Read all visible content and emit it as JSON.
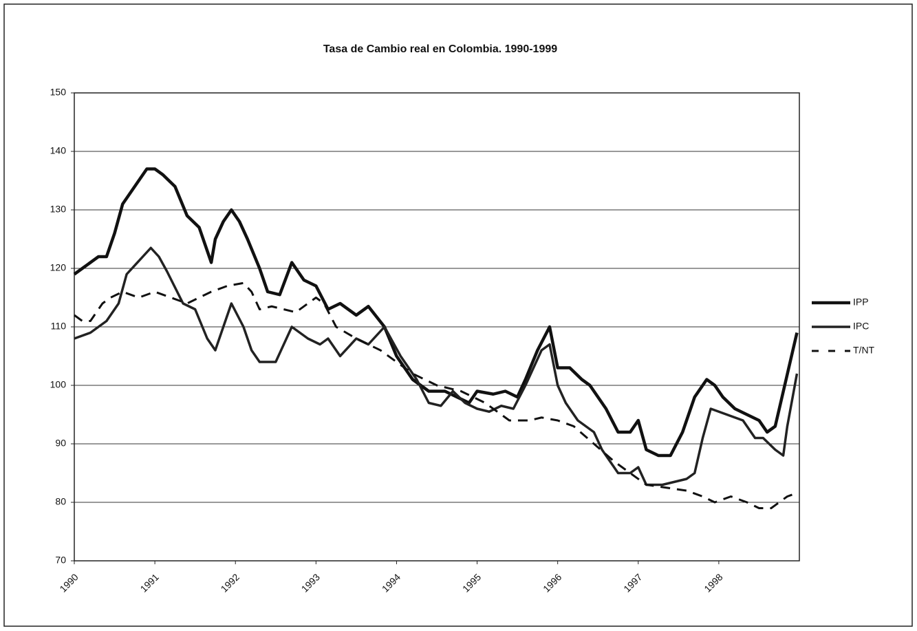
{
  "chart_data": {
    "type": "line",
    "title": "Tasa de Cambio real en Colombia. 1990-1999",
    "xlim": [
      1990,
      1999
    ],
    "xticks": [
      1990,
      1991,
      1992,
      1993,
      1994,
      1995,
      1996,
      1997,
      1998
    ],
    "ylim": [
      70,
      150
    ],
    "yticks": [
      70,
      80,
      90,
      100,
      110,
      120,
      130,
      140,
      150
    ],
    "grid": true,
    "legend": "right",
    "series": [
      {
        "name": "IPP",
        "color": "#111111",
        "style": "solid",
        "x": [
          1990.0,
          1990.1,
          1990.2,
          1990.3,
          1990.4,
          1990.5,
          1990.6,
          1990.75,
          1990.9,
          1991.0,
          1991.1,
          1991.25,
          1991.4,
          1991.55,
          1991.7,
          1991.75,
          1991.85,
          1991.95,
          1992.05,
          1992.15,
          1992.3,
          1992.4,
          1992.55,
          1992.7,
          1992.85,
          1993.0,
          1993.15,
          1993.3,
          1993.5,
          1993.65,
          1993.85,
          1994.0,
          1994.2,
          1994.4,
          1994.6,
          1994.75,
          1994.9,
          1995.0,
          1995.2,
          1995.35,
          1995.5,
          1995.6,
          1995.75,
          1995.9,
          1996.0,
          1996.15,
          1996.3,
          1996.4,
          1996.5,
          1996.6,
          1996.75,
          1996.9,
          1997.0,
          1997.1,
          1997.25,
          1997.4,
          1997.55,
          1997.7,
          1997.85,
          1997.95,
          1998.05,
          1998.2,
          1998.35,
          1998.5,
          1998.6,
          1998.7,
          1998.97
        ],
        "values": [
          119,
          120,
          121,
          122,
          122,
          126,
          131,
          134,
          137,
          137,
          136,
          134,
          129,
          127,
          121,
          125,
          128,
          130,
          128,
          125,
          120,
          116,
          115.5,
          121,
          118,
          117,
          113,
          114,
          112,
          113.5,
          110,
          105,
          101,
          99,
          99,
          98,
          97,
          99,
          98.5,
          99,
          98,
          101,
          106,
          110,
          103,
          103,
          101,
          100,
          98,
          96,
          92,
          92,
          94,
          89,
          88,
          88,
          92,
          98,
          101,
          100,
          98,
          96,
          95,
          94,
          92,
          93,
          109
        ]
      },
      {
        "name": "IPC",
        "color": "#222222",
        "style": "solid",
        "x": [
          1990.0,
          1990.2,
          1990.4,
          1990.55,
          1990.65,
          1990.85,
          1990.95,
          1991.05,
          1991.15,
          1991.35,
          1991.5,
          1991.65,
          1991.75,
          1991.85,
          1991.95,
          1992.1,
          1992.2,
          1992.3,
          1992.5,
          1992.7,
          1992.9,
          1993.05,
          1993.15,
          1993.3,
          1993.5,
          1993.65,
          1993.85,
          1994.05,
          1994.25,
          1994.4,
          1994.55,
          1994.7,
          1994.85,
          1995.0,
          1995.15,
          1995.3,
          1995.45,
          1995.6,
          1995.8,
          1995.9,
          1996.0,
          1996.1,
          1996.25,
          1996.35,
          1996.45,
          1996.55,
          1996.75,
          1996.9,
          1997.0,
          1997.1,
          1997.3,
          1997.45,
          1997.6,
          1997.7,
          1997.8,
          1997.9,
          1998.1,
          1998.3,
          1998.45,
          1998.55,
          1998.7,
          1998.8,
          1998.85,
          1998.97
        ],
        "values": [
          108,
          109,
          111,
          114,
          119,
          122,
          123.5,
          122,
          119.5,
          114,
          113,
          108,
          106,
          110,
          114,
          110,
          106,
          104,
          104,
          110,
          108,
          107,
          108,
          105,
          108,
          107,
          110,
          105,
          101,
          97,
          96.5,
          99,
          97,
          96,
          95.5,
          96.5,
          96,
          100,
          106,
          107,
          100,
          97,
          94,
          93,
          92,
          89,
          85,
          85,
          86,
          83,
          83,
          83.5,
          84,
          85,
          91,
          96,
          95,
          94,
          91,
          91,
          89,
          88,
          93,
          102
        ]
      },
      {
        "name": "T/NT",
        "color": "#111111",
        "style": "dashed",
        "x": [
          1990.0,
          1990.1,
          1990.2,
          1990.35,
          1990.45,
          1990.6,
          1990.8,
          1991.0,
          1991.2,
          1991.4,
          1991.55,
          1991.7,
          1991.9,
          1992.1,
          1992.2,
          1992.3,
          1992.45,
          1992.6,
          1992.75,
          1992.9,
          1993.0,
          1993.1,
          1993.25,
          1993.5,
          1993.8,
          1994.0,
          1994.2,
          1994.5,
          1994.8,
          1995.1,
          1995.4,
          1995.65,
          1995.8,
          1996.0,
          1996.2,
          1996.45,
          1996.7,
          1996.9,
          1997.1,
          1997.35,
          1997.6,
          1997.8,
          1997.95,
          1998.15,
          1998.35,
          1998.5,
          1998.65,
          1998.85,
          1998.95
        ],
        "values": [
          112,
          111,
          111,
          114,
          115,
          116,
          115,
          116,
          115,
          114,
          115,
          116,
          117,
          117.5,
          116,
          113,
          113.5,
          113,
          112.5,
          114,
          115,
          114,
          110,
          108,
          106,
          104,
          102,
          100,
          99,
          97,
          94,
          94,
          94.5,
          94,
          93,
          90,
          87,
          85,
          83,
          82.5,
          82,
          81,
          80,
          81,
          80,
          79,
          79,
          81,
          81.5
        ]
      }
    ]
  }
}
